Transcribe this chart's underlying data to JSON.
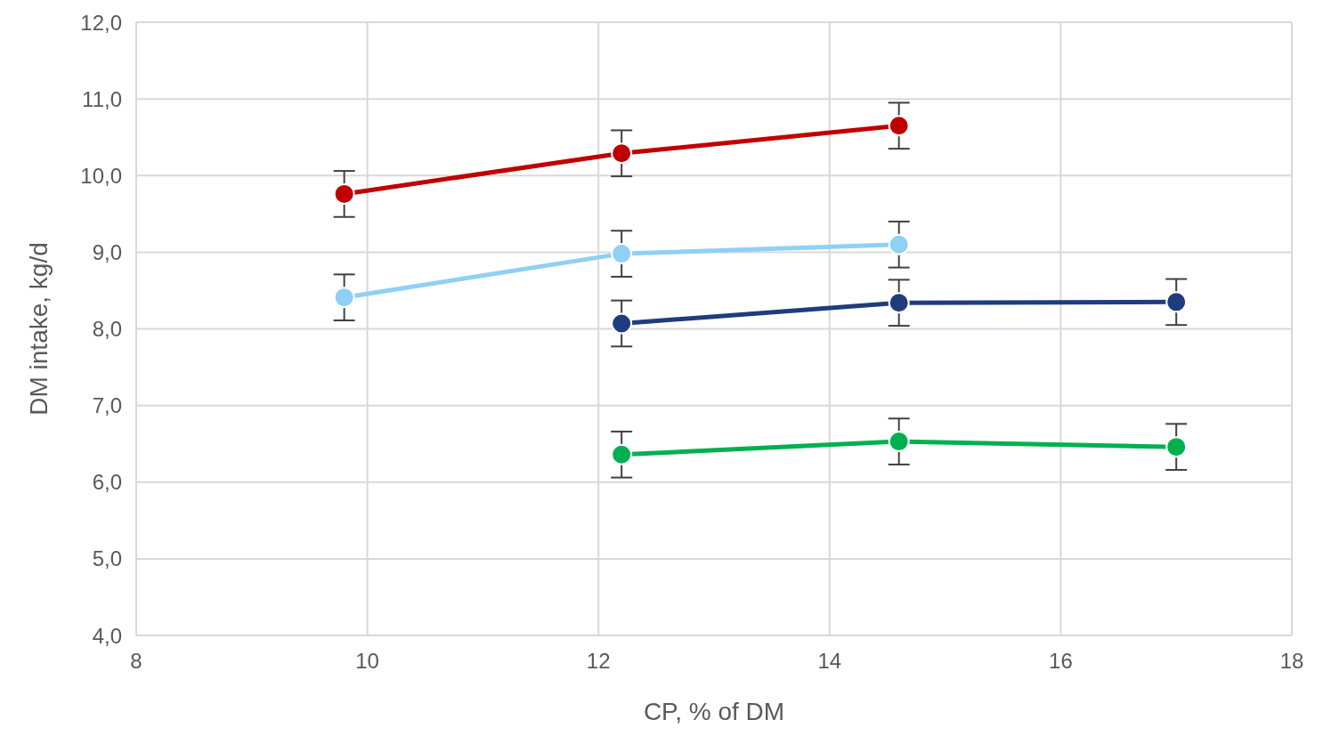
{
  "chart_data": {
    "type": "line",
    "xlabel": "CP, % of DM",
    "ylabel": "DM intake, kg/d",
    "xlim": [
      8,
      18
    ],
    "xticks": [
      8,
      10,
      12,
      14,
      16,
      18
    ],
    "ylim": [
      4,
      12
    ],
    "yticks": [
      {
        "value": 4,
        "label": "4,0"
      },
      {
        "value": 5,
        "label": "5,0"
      },
      {
        "value": 6,
        "label": "6,0"
      },
      {
        "value": 7,
        "label": "7,0"
      },
      {
        "value": 8,
        "label": "8,0"
      },
      {
        "value": 9,
        "label": "9,0"
      },
      {
        "value": 10,
        "label": "10,0"
      },
      {
        "value": 11,
        "label": "11,0"
      },
      {
        "value": 12,
        "label": "12,0"
      }
    ],
    "grid": true,
    "marker": "circle",
    "series": [
      {
        "color": "#c00000",
        "x": [
          9.8,
          12.2,
          14.6
        ],
        "values": [
          9.76,
          10.29,
          10.65
        ],
        "errors": [
          0.3,
          0.3,
          0.3
        ]
      },
      {
        "color": "#8fd0f5",
        "x": [
          9.8,
          12.2,
          14.6
        ],
        "values": [
          8.41,
          8.98,
          9.1
        ],
        "errors": [
          0.3,
          0.3,
          0.3
        ]
      },
      {
        "color": "#1f3c7d",
        "x": [
          12.2,
          14.6,
          17
        ],
        "values": [
          8.07,
          8.34,
          8.35
        ],
        "errors": [
          0.3,
          0.3,
          0.3
        ]
      },
      {
        "color": "#00b050",
        "x": [
          12.2,
          14.6,
          17
        ],
        "values": [
          6.36,
          6.53,
          6.46
        ],
        "errors": [
          0.3,
          0.3,
          0.3
        ]
      }
    ]
  }
}
